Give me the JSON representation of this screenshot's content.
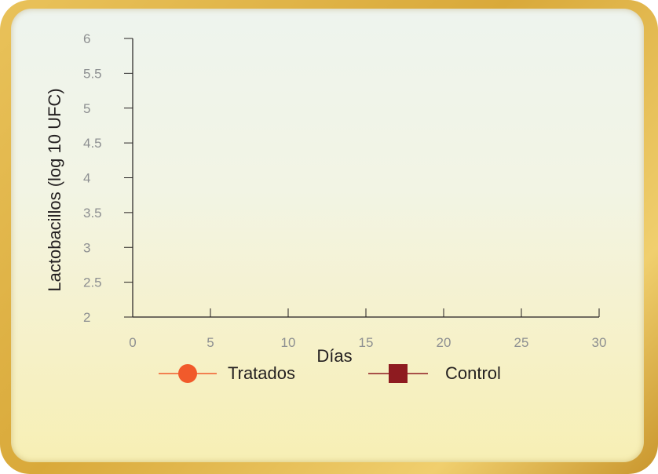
{
  "chart_data": {
    "type": "line",
    "xlabel": "Días",
    "ylabel": "Lactobacillos (log 10 UFC)",
    "xlim": [
      0,
      30
    ],
    "ylim": [
      2,
      6
    ],
    "x_ticks": [
      "0",
      "5",
      "10",
      "15",
      "20",
      "25",
      "30"
    ],
    "y_ticks": [
      "2",
      "2.5",
      "3",
      "3.5",
      "4",
      "4.5",
      "5",
      "5.5",
      "6"
    ],
    "grid": false,
    "legend_position": "bottom",
    "series": [
      {
        "name": "Tratados",
        "marker": "circle",
        "color": "#f15a2b",
        "values": []
      },
      {
        "name": "Control",
        "marker": "square",
        "color": "#8e1b20",
        "values": []
      }
    ]
  },
  "colors": {
    "frame": "#dcae45",
    "axis": "#231f20",
    "tick_label": "#8d8f91"
  }
}
